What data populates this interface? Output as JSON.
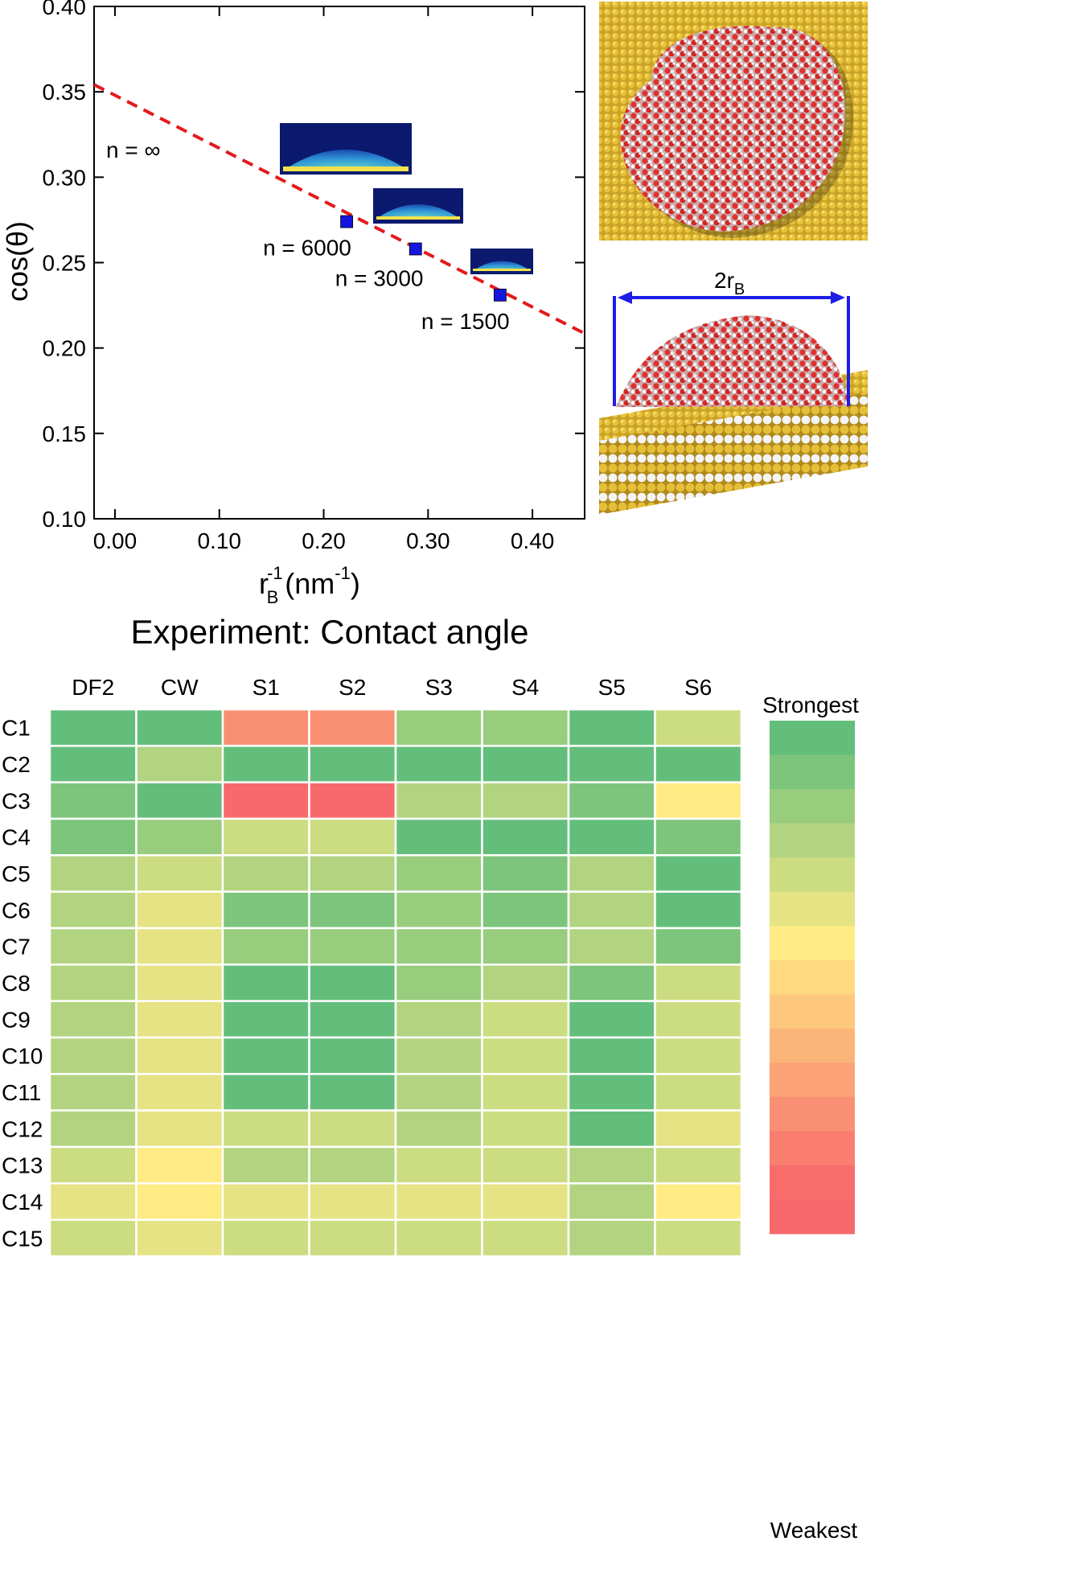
{
  "chart_data": [
    {
      "type": "scatter",
      "title": "",
      "xlabel": "r",
      "xlabel_sup": "-1",
      "xlabel_sub": "B",
      "xlabel_unit_open": "(nm",
      "xlabel_unit_sup": "-1",
      "xlabel_unit_close": ")",
      "ylabel": "cos(θ)",
      "xlim": [
        -0.02,
        0.45
      ],
      "ylim": [
        0.1,
        0.4
      ],
      "xticks": [
        0.0,
        0.1,
        0.2,
        0.3,
        0.4
      ],
      "xtick_labels": [
        "0.00",
        "0.10",
        "0.20",
        "0.30",
        "0.40"
      ],
      "yticks": [
        0.1,
        0.15,
        0.2,
        0.25,
        0.3,
        0.35,
        0.4
      ],
      "ytick_labels": [
        "0.10",
        "0.15",
        "0.20",
        "0.25",
        "0.30",
        "0.35",
        "0.40"
      ],
      "points": [
        {
          "x": 0.222,
          "y": 0.274,
          "label": "n = 6000"
        },
        {
          "x": 0.288,
          "y": 0.258,
          "label": "n = 3000"
        },
        {
          "x": 0.369,
          "y": 0.231,
          "label": "n = 1500"
        }
      ],
      "fit_line": {
        "slope": -0.31,
        "intercept": 0.348,
        "color": "#e41a1c",
        "style": "dashed"
      },
      "annotation": "n = ∞",
      "marker_color": "#1515e0",
      "grid": false
    },
    {
      "type": "heatmap",
      "title": "Experiment: Contact angle",
      "columns": [
        "DF2",
        "CW",
        "S1",
        "S2",
        "S3",
        "S4",
        "S5",
        "S6"
      ],
      "rows": [
        "C1",
        "C2",
        "C3",
        "C4",
        "C5",
        "C6",
        "C7",
        "C8",
        "C9",
        "C10",
        "C11",
        "C12",
        "C13",
        "C14",
        "C15"
      ],
      "scale_note": "0 = strongest, 14 = weakest",
      "values": [
        [
          0,
          0,
          11,
          11,
          2,
          2,
          0,
          4
        ],
        [
          0,
          3,
          0,
          0,
          0,
          0,
          0,
          0
        ],
        [
          1,
          0,
          14,
          14,
          3,
          3,
          1,
          6
        ],
        [
          1,
          2,
          4,
          4,
          0,
          0,
          0,
          1
        ],
        [
          3,
          4,
          3,
          3,
          2,
          1,
          3,
          0
        ],
        [
          3,
          5,
          1,
          1,
          2,
          1,
          3,
          0
        ],
        [
          3,
          5,
          2,
          2,
          2,
          2,
          3,
          1
        ],
        [
          3,
          5,
          0,
          0,
          2,
          3,
          1,
          4
        ],
        [
          3,
          5,
          0,
          0,
          3,
          4,
          0,
          4
        ],
        [
          3,
          5,
          0,
          0,
          3,
          4,
          0,
          4
        ],
        [
          3,
          5,
          0,
          0,
          3,
          4,
          0,
          4
        ],
        [
          3,
          5,
          4,
          4,
          3,
          4,
          0,
          5
        ],
        [
          4,
          6,
          3,
          3,
          4,
          4,
          3,
          4
        ],
        [
          5,
          6,
          5,
          5,
          5,
          5,
          3,
          6
        ],
        [
          4,
          5,
          4,
          4,
          4,
          4,
          3,
          4
        ]
      ],
      "colorbar": {
        "top_label": "Strongest",
        "bottom_label": "Weakest",
        "colors": [
          "#63be7b",
          "#7dc57c",
          "#98cd7e",
          "#b2d480",
          "#ccdc81",
          "#e5e383",
          "#ffeb84",
          "#fed980",
          "#fdc77d",
          "#fcb579",
          "#fba276",
          "#fa9073",
          "#f97e6f",
          "#f86c6c",
          "#f8696b"
        ]
      }
    }
  ],
  "render": {
    "n_labels": [
      "n = 6000",
      "n = 3000",
      "n = 1500"
    ],
    "drop_label": "2r",
    "drop_label_sub": "B"
  }
}
